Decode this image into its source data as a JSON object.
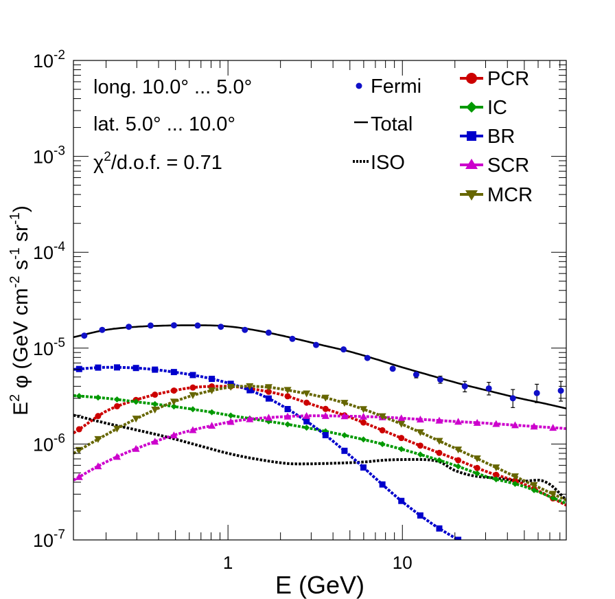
{
  "chart_data": {
    "type": "scatter",
    "title": "",
    "xlabel": "E (GeV)",
    "ylabel_parts": {
      "prefix": "E",
      "sup1": "2",
      "mid": " φ (GeV cm",
      "sup2": "-2",
      "mid2": " s",
      "sup3": "-1",
      "mid3": " sr",
      "sup4": "-1",
      "suffix": ")"
    },
    "xscale": "log",
    "yscale": "log",
    "xlim": [
      0.13,
      87
    ],
    "ylim": [
      1e-07,
      0.01
    ],
    "x_ticks": [
      {
        "value": 1,
        "label": "1"
      },
      {
        "value": 10,
        "label": "10"
      }
    ],
    "y_ticks": [
      {
        "value": 1e-07,
        "base": "10",
        "exp": "-7"
      },
      {
        "value": 1e-06,
        "base": "10",
        "exp": "-6"
      },
      {
        "value": 1e-05,
        "base": "10",
        "exp": "-5"
      },
      {
        "value": 0.0001,
        "base": "10",
        "exp": "-4"
      },
      {
        "value": 0.001,
        "base": "10",
        "exp": "-3"
      },
      {
        "value": 0.01,
        "base": "10",
        "exp": "-2"
      }
    ],
    "annotations": {
      "line1": "long. 10.0° ... 5.0°",
      "line2": "lat. 5.0° ... 10.0°",
      "chi_symbol": "χ",
      "chi_sup": "2",
      "chi_rest": "/d.o.f. = 0.71"
    },
    "legend_left": [
      {
        "label": "Fermi",
        "style": "dot",
        "color": "#1010c8"
      },
      {
        "label": "Total",
        "style": "line",
        "color": "#000000"
      },
      {
        "label": "ISO",
        "style": "dotted",
        "color": "#000000"
      }
    ],
    "legend_right": [
      {
        "label": "PCR",
        "marker": "circle",
        "color": "#cc0000"
      },
      {
        "label": "IC",
        "marker": "diamond",
        "color": "#009900"
      },
      {
        "label": "BR",
        "marker": "square",
        "color": "#0000cc"
      },
      {
        "label": "SCR",
        "marker": "triangle-up",
        "color": "#cc00cc"
      },
      {
        "label": "MCR",
        "marker": "triangle-down",
        "color": "#666600"
      }
    ],
    "fermi": {
      "x": [
        0.15,
        0.19,
        0.27,
        0.36,
        0.49,
        0.67,
        0.91,
        1.25,
        1.71,
        2.34,
        3.2,
        4.6,
        6.3,
        8.8,
        12.0,
        16.5,
        22.8,
        31.3,
        43.0,
        59.0,
        81.0
      ],
      "y": [
        1.35e-05,
        1.55e-05,
        1.67e-05,
        1.72e-05,
        1.73e-05,
        1.72e-05,
        1.67e-05,
        1.55e-05,
        1.45e-05,
        1.25e-05,
        1.08e-05,
        9.7e-06,
        7.9e-06,
        6.1e-06,
        5.3e-06,
        4.7e-06,
        4e-06,
        3.8e-06,
        3e-06,
        3.4e-06,
        3.6e-06
      ],
      "err_lo": [
        0,
        0,
        0,
        0,
        0,
        0,
        0,
        0,
        0,
        0,
        0,
        0,
        0,
        0,
        4e-07,
        4e-07,
        5e-07,
        5.5e-07,
        6e-07,
        7e-07,
        8e-07
      ],
      "err_hi": [
        0,
        0,
        0,
        0,
        0,
        0,
        0,
        0,
        0,
        0,
        0,
        0,
        0,
        0,
        4e-07,
        4e-07,
        5e-07,
        6e-07,
        7e-07,
        8e-07,
        9e-07
      ]
    },
    "series": [
      {
        "name": "Total",
        "style": "solid",
        "color": "#000000",
        "x": [
          0.13,
          0.2,
          0.3,
          0.45,
          0.65,
          0.9,
          1.2,
          1.7,
          2.5,
          3.5,
          5,
          7,
          10,
          15,
          22,
          32,
          45,
          65,
          87
        ],
        "y": [
          1.3e-05,
          1.55e-05,
          1.67e-05,
          1.72e-05,
          1.73e-05,
          1.71e-05,
          1.62e-05,
          1.45e-05,
          1.24e-05,
          1.07e-05,
          9.2e-06,
          7.7e-06,
          6.3e-06,
          5.1e-06,
          4.2e-06,
          3.55e-06,
          3.05e-06,
          2.65e-06,
          2.35e-06
        ]
      },
      {
        "name": "ISO",
        "style": "dotted",
        "color": "#000000",
        "x": [
          0.13,
          0.2,
          0.3,
          0.45,
          0.7,
          1.0,
          1.5,
          2.5,
          4,
          6,
          8,
          12,
          16,
          20,
          25,
          35,
          50,
          60,
          70,
          87
        ],
        "y": [
          2e-06,
          1.65e-06,
          1.4e-06,
          1.18e-06,
          9.5e-07,
          8e-07,
          6.9e-07,
          6.2e-07,
          6.3e-07,
          6.5e-07,
          6.8e-07,
          6.9e-07,
          6.6e-07,
          5.3e-07,
          4.7e-07,
          4.4e-07,
          4.1e-07,
          4.2e-07,
          3.8e-07,
          2.6e-07
        ]
      },
      {
        "name": "PCR",
        "style": "dashed",
        "marker": "circle",
        "color": "#cc0000",
        "x": [
          0.13,
          0.15,
          0.2,
          0.3,
          0.45,
          0.7,
          1.0,
          1.3,
          2,
          3,
          5,
          8,
          12,
          20,
          30,
          50,
          87
        ],
        "y": [
          1.3e-06,
          1.55e-06,
          2.2e-06,
          2.9e-06,
          3.5e-06,
          3.95e-06,
          4e-06,
          3.8e-06,
          3.3e-06,
          2.6e-06,
          1.9e-06,
          1.35e-06,
          1e-06,
          7e-07,
          5.2e-07,
          3.8e-07,
          2.3e-07
        ]
      },
      {
        "name": "IC",
        "style": "dashed",
        "marker": "diamond",
        "color": "#009900",
        "x": [
          0.13,
          0.2,
          0.3,
          0.5,
          0.8,
          1.2,
          2,
          3,
          5,
          8,
          12,
          20,
          30,
          50,
          87
        ],
        "y": [
          3.2e-06,
          3e-06,
          2.75e-06,
          2.45e-06,
          2.15e-06,
          1.9e-06,
          1.65e-06,
          1.45e-06,
          1.2e-06,
          9.8e-07,
          8e-07,
          6e-07,
          4.6e-07,
          3.6e-07,
          2.4e-07
        ]
      },
      {
        "name": "BR",
        "style": "dashed",
        "marker": "square",
        "color": "#0000cc",
        "x": [
          0.13,
          0.2,
          0.3,
          0.5,
          0.8,
          1.2,
          1.7,
          2.5,
          3.5,
          5,
          7,
          10,
          15,
          20,
          26
        ],
        "y": [
          6e-06,
          6.3e-06,
          6.2e-06,
          5.6e-06,
          4.8e-06,
          3.9e-06,
          3e-06,
          2e-06,
          1.3e-06,
          7.6e-07,
          4.4e-07,
          2.5e-07,
          1.45e-07,
          1.05e-07,
          8e-08
        ]
      },
      {
        "name": "SCR",
        "style": "dashed",
        "marker": "triangle-up",
        "color": "#cc00cc",
        "x": [
          0.13,
          0.2,
          0.3,
          0.5,
          0.8,
          1.2,
          2,
          3,
          5,
          8,
          12,
          20,
          30,
          50,
          87
        ],
        "y": [
          4.2e-07,
          6.5e-07,
          9e-07,
          1.25e-06,
          1.55e-06,
          1.78e-06,
          1.92e-06,
          1.97e-06,
          1.95e-06,
          1.9e-06,
          1.82e-06,
          1.72e-06,
          1.65e-06,
          1.55e-06,
          1.45e-06
        ]
      },
      {
        "name": "MCR",
        "style": "dashed",
        "marker": "triangle-down",
        "color": "#666600",
        "x": [
          0.13,
          0.2,
          0.3,
          0.5,
          0.8,
          1.2,
          1.6,
          2.5,
          4,
          6,
          10,
          15,
          25,
          40,
          87
        ],
        "y": [
          8e-07,
          1.25e-06,
          1.85e-06,
          2.8e-06,
          3.6e-06,
          4e-06,
          3.95e-06,
          3.5e-06,
          2.9e-06,
          2.3e-06,
          1.6e-06,
          1.15e-06,
          7.5e-07,
          5e-07,
          2.6e-07
        ]
      }
    ]
  }
}
